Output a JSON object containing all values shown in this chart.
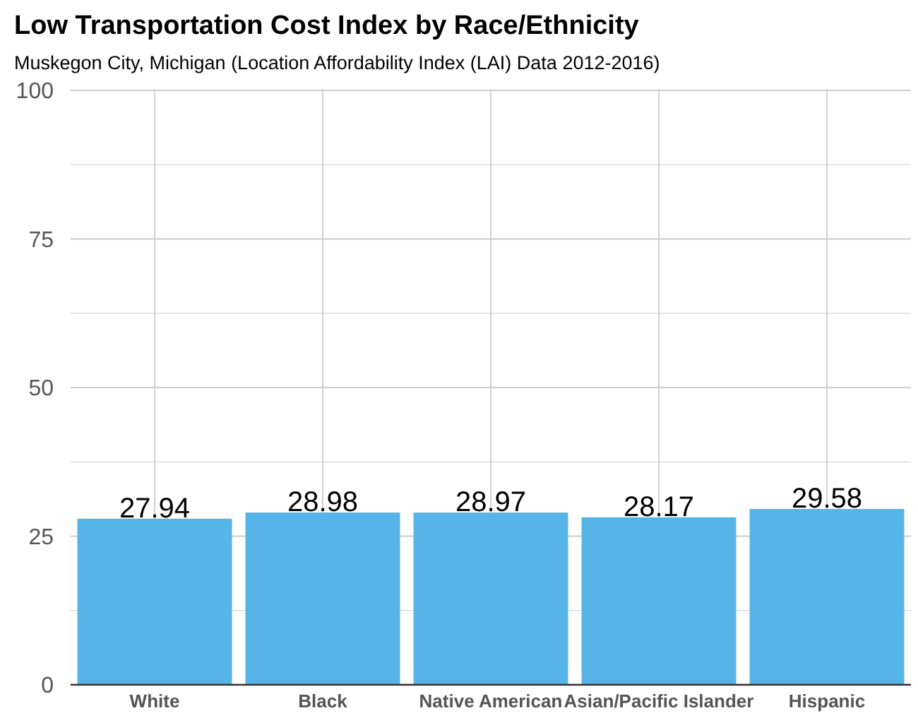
{
  "chart_data": {
    "type": "bar",
    "title": "Low Transportation Cost Index by Race/Ethnicity",
    "subtitle": "Muskegon City,  Michigan  (Location Affordability Index (LAI) Data 2012-2016)",
    "categories": [
      "White",
      "Black",
      "Native American",
      "Asian/Pacific Islander",
      "Hispanic"
    ],
    "values": [
      27.94,
      28.98,
      28.97,
      28.17,
      29.58
    ],
    "color": "#56b4e9",
    "ylim": [
      0,
      100
    ],
    "yticks": [
      0,
      {
        "value": 12.5,
        "label": null
      },
      25,
      {
        "value": 37.5,
        "label": null
      },
      50,
      {
        "value": 62.5,
        "label": null
      },
      75,
      {
        "value": 87.5,
        "label": null
      },
      100
    ],
    "grid": true,
    "data_labels": true
  }
}
